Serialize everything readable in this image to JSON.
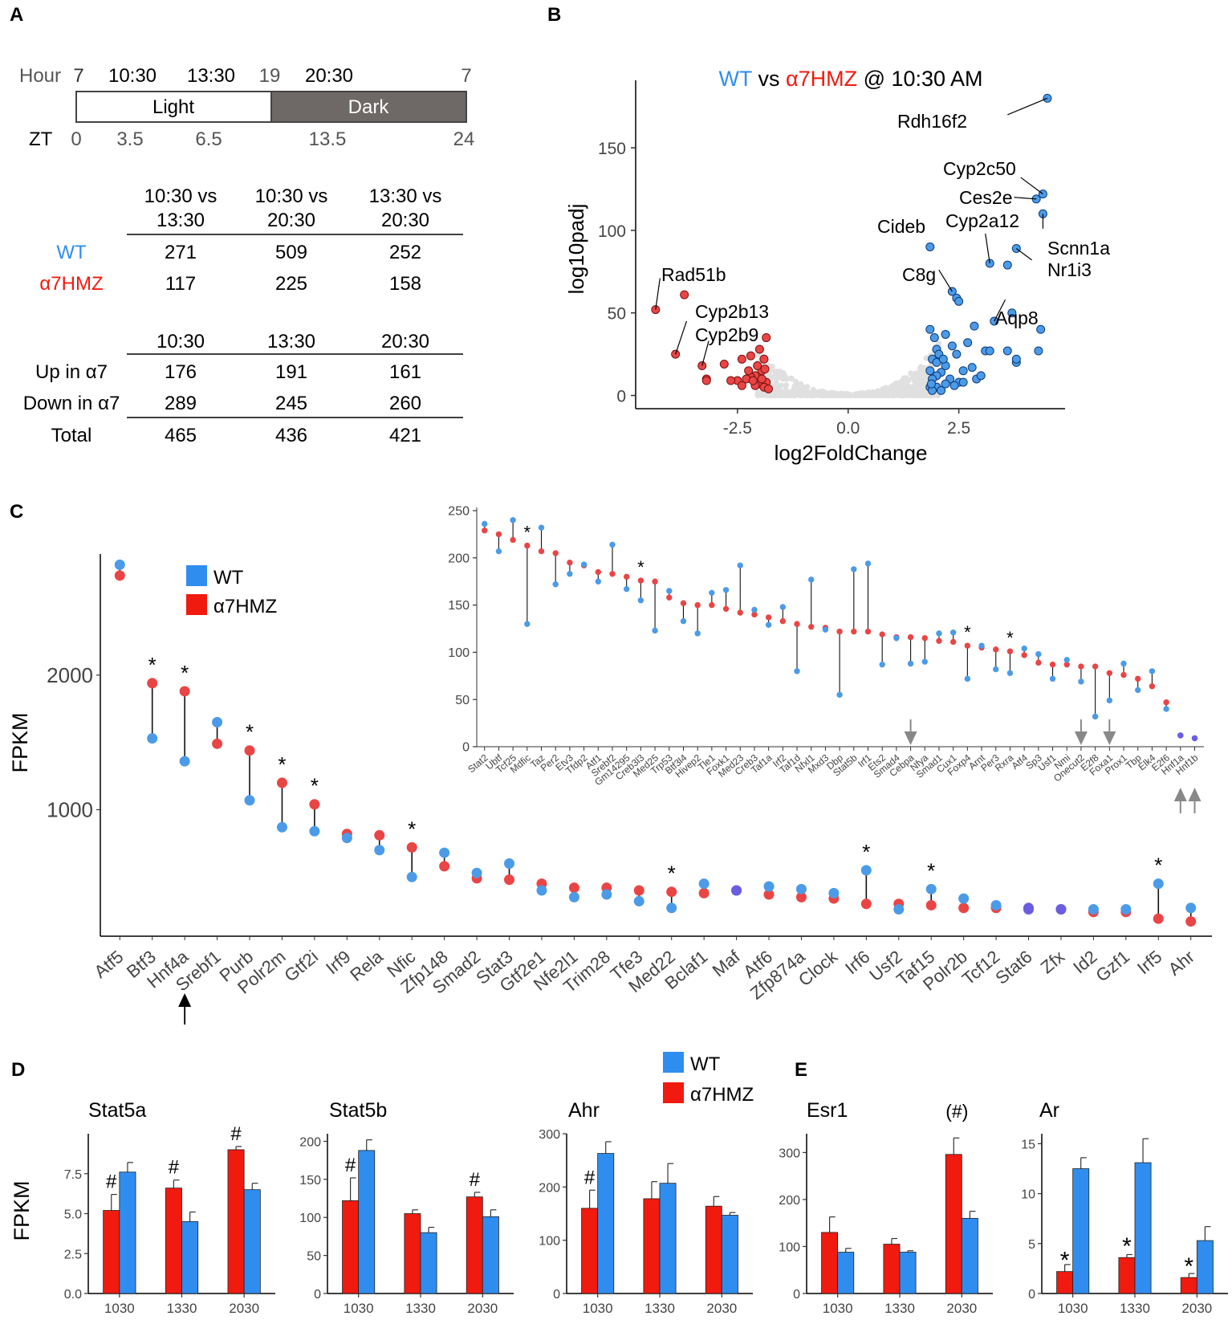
{
  "panel_labels": {
    "a": "A",
    "b": "B",
    "c": "C",
    "d": "D",
    "e": "E"
  },
  "colors": {
    "wt": "#2f8df0",
    "mut": "#f01a0f",
    "wt_dot": "#4b9be8",
    "mut_dot": "#ea4545",
    "dark": "#6e6866",
    "grey_pts": "#c8c8c8",
    "arrow_grey": "#888888"
  },
  "panel_a": {
    "hour_label": "Hour",
    "hours": [
      "7",
      "10:30",
      "13:30",
      "19",
      "20:30",
      "7"
    ],
    "light_label": "Light",
    "dark_label": "Dark",
    "zt_label": "ZT",
    "zt": [
      "0",
      "3.5",
      "6.5",
      "13.5",
      "24"
    ],
    "table1": {
      "headers": [
        [
          "10:30 vs",
          "13:30"
        ],
        [
          "10:30 vs",
          "20:30"
        ],
        [
          "13:30 vs",
          "20:30"
        ]
      ],
      "rows": [
        {
          "label": "WT",
          "values": [
            "271",
            "509",
            "252"
          ]
        },
        {
          "label": "α7HMZ",
          "values": [
            "117",
            "225",
            "158"
          ]
        }
      ]
    },
    "table2": {
      "headers": [
        "10:30",
        "13:30",
        "20:30"
      ],
      "rows": [
        {
          "label": "Up in α7",
          "values": [
            "176",
            "191",
            "161"
          ]
        },
        {
          "label": "Down in α7",
          "values": [
            "289",
            "245",
            "260"
          ]
        },
        {
          "label": "Total",
          "values": [
            "465",
            "436",
            "421"
          ]
        }
      ]
    }
  },
  "panel_b_text": {
    "title_wt": "WT",
    "title_vs": " vs ",
    "title_mut": "α7HMZ",
    "title_rest": " @ 10:30 AM",
    "xlabel": "log2FoldChange",
    "ylabel": "log10padj",
    "labels": [
      "Rdh16f2",
      "Cyp2c50",
      "Ces2e",
      "Cyp2a12",
      "Cideb",
      "Scnn1a",
      "Nr1i3",
      "C8g",
      "Aqp8",
      "Rad51b",
      "Cyp2b13",
      "Cyp2b9"
    ]
  },
  "panel_c_text": {
    "ylabel": "FPKM",
    "legend_wt": "WT",
    "legend_mut": "α7HMZ",
    "star": "*"
  },
  "panel_d_text": {
    "ylabel": "FPKM",
    "legend_wt": "WT",
    "legend_mut": "α7HMZ"
  },
  "chart_data": [
    {
      "id": "volcano",
      "type": "scatter",
      "title": "WT vs α7HMZ @ 10:30 AM",
      "xlabel": "log2FoldChange",
      "ylabel": "log10padj",
      "xlim": [
        -4.8,
        4.9
      ],
      "ylim": [
        -8,
        186
      ],
      "xticks": [
        -2.5,
        0.0,
        2.5
      ],
      "xtick_labels": [
        "-2.5",
        "0.0",
        "2.5"
      ],
      "yticks": [
        0,
        50,
        100,
        150
      ],
      "ytick_labels": [
        "0",
        "50",
        "100",
        "150"
      ],
      "up_points": [
        [
          4.5,
          180
        ],
        [
          4.4,
          122
        ],
        [
          4.25,
          119
        ],
        [
          4.4,
          110
        ],
        [
          3.8,
          89
        ],
        [
          3.2,
          80
        ],
        [
          3.6,
          79
        ],
        [
          1.85,
          90
        ],
        [
          2.35,
          63
        ],
        [
          2.45,
          59
        ],
        [
          2.5,
          57
        ],
        [
          3.3,
          45
        ],
        [
          2.85,
          42
        ],
        [
          3.7,
          50
        ],
        [
          1.85,
          40
        ],
        [
          2.2,
          37
        ],
        [
          4.3,
          27
        ],
        [
          3.6,
          27
        ],
        [
          3.1,
          27
        ],
        [
          3.2,
          27
        ],
        [
          4.35,
          40
        ],
        [
          3.8,
          20
        ],
        [
          3.8,
          22
        ],
        [
          2.0,
          28
        ],
        [
          2.05,
          25
        ],
        [
          2.35,
          30
        ],
        [
          1.9,
          22
        ],
        [
          2.2,
          18
        ],
        [
          1.85,
          15
        ],
        [
          2.1,
          14
        ],
        [
          2.0,
          12
        ],
        [
          2.6,
          15
        ],
        [
          2.8,
          17
        ],
        [
          1.9,
          10
        ],
        [
          2.3,
          10
        ],
        [
          2.5,
          8
        ],
        [
          1.85,
          5
        ],
        [
          2.0,
          5
        ],
        [
          2.2,
          7
        ],
        [
          2.4,
          6
        ],
        [
          2.6,
          8
        ],
        [
          2.9,
          10
        ],
        [
          3.0,
          12
        ],
        [
          1.9,
          3
        ],
        [
          2.1,
          3
        ],
        [
          1.88,
          7
        ],
        [
          2.0,
          20
        ],
        [
          2.15,
          22
        ],
        [
          2.45,
          25
        ],
        [
          2.7,
          32
        ],
        [
          1.95,
          35
        ]
      ],
      "up_labels": [
        {
          "name": "Rdh16f2",
          "point": [
            4.5,
            180
          ],
          "label_end": [
            3.6,
            170
          ]
        },
        {
          "name": "Cyp2c50",
          "point": [
            4.4,
            122
          ],
          "label_end": [
            3.9,
            132
          ]
        },
        {
          "name": "Ces2e",
          "point": [
            4.25,
            119
          ],
          "label_end": [
            3.75,
            120
          ]
        },
        {
          "name": "Cyp2a12",
          "point": [
            3.2,
            80
          ],
          "label_end": [
            3.1,
            98
          ]
        },
        {
          "name": "Cideb",
          "point": [
            1.85,
            90
          ],
          "label_end": [
            1.85,
            90
          ]
        },
        {
          "name": "Scnn1a",
          "point": [
            4.4,
            110
          ],
          "label_end": [
            4.4,
            101
          ]
        },
        {
          "name": "Nr1i3",
          "point": [
            3.8,
            89
          ],
          "label_end": [
            4.15,
            82
          ]
        },
        {
          "name": "C8g",
          "point": [
            2.35,
            63
          ],
          "label_end": [
            2.05,
            76
          ]
        },
        {
          "name": "Aqp8",
          "point": [
            3.3,
            45
          ],
          "label_end": [
            3.55,
            58
          ]
        }
      ],
      "down_points": [
        [
          -4.35,
          52
        ],
        [
          -3.7,
          61
        ],
        [
          -3.9,
          25
        ],
        [
          -3.3,
          18
        ],
        [
          -2.8,
          19
        ],
        [
          -2.4,
          22
        ],
        [
          -2.2,
          24
        ],
        [
          -2.0,
          28
        ],
        [
          -1.85,
          35
        ],
        [
          -1.9,
          22
        ],
        [
          -1.95,
          15
        ],
        [
          -2.1,
          12
        ],
        [
          -2.2,
          11
        ],
        [
          -2.3,
          10
        ],
        [
          -2.5,
          9
        ],
        [
          -2.65,
          9
        ],
        [
          -1.85,
          8
        ],
        [
          -2.0,
          7
        ],
        [
          -2.1,
          6
        ],
        [
          -1.9,
          5
        ],
        [
          -1.8,
          4
        ],
        [
          -2.4,
          6
        ],
        [
          -2.05,
          18
        ],
        [
          -2.25,
          15
        ],
        [
          -1.88,
          16
        ],
        [
          -2.15,
          9
        ],
        [
          -1.95,
          10
        ],
        [
          -3.2,
          10
        ],
        [
          -3.2,
          9
        ]
      ],
      "down_labels": [
        {
          "name": "Rad51b",
          "point": [
            -4.35,
            52
          ],
          "label_end": [
            -4.25,
            71
          ]
        },
        {
          "name": "Cyp2b13",
          "point": [
            -3.9,
            25
          ],
          "label_end": [
            -3.65,
            45
          ]
        },
        {
          "name": "Cyp2b9",
          "point": [
            -3.3,
            18
          ],
          "label_end": [
            -3.15,
            33
          ]
        }
      ]
    },
    {
      "id": "tf_main",
      "type": "scatter",
      "title": "",
      "xlabel": "",
      "ylabel": "FPKM",
      "ylim": [
        60,
        2900
      ],
      "yticks": [
        1000,
        2000
      ],
      "ytick_labels": [
        "1000",
        "2000"
      ],
      "categories": [
        "Atf5",
        "Btf3",
        "Hnf4a",
        "Srebf1",
        "Purb",
        "Polr2m",
        "Gtf2i",
        "Irf9",
        "Rela",
        "Nfic",
        "Zfp148",
        "Smad2",
        "Stat3",
        "Gtf2e1",
        "Nfe2l1",
        "Trim28",
        "Tfe3",
        "Med22",
        "Bclaf1",
        "Maf",
        "Atf6",
        "Zfp874a",
        "Clock",
        "Irf6",
        "Usf2",
        "Taf15",
        "Polr2b",
        "Tcf12",
        "Stat6",
        "Zfx",
        "Id2",
        "Gzf1",
        "Irf5",
        "Ahr"
      ],
      "series": [
        {
          "name": "WT",
          "values": [
            2820,
            1530,
            1360,
            1650,
            1070,
            870,
            840,
            790,
            700,
            500,
            680,
            530,
            600,
            400,
            350,
            370,
            320,
            270,
            450,
            400,
            430,
            410,
            380,
            550,
            260,
            410,
            340,
            290,
            260,
            260,
            260,
            260,
            450,
            270
          ]
        },
        {
          "name": "α7HMZ",
          "values": [
            2740,
            1940,
            1880,
            1490,
            1440,
            1200,
            1040,
            820,
            810,
            720,
            580,
            490,
            480,
            450,
            420,
            420,
            400,
            390,
            380,
            400,
            370,
            350,
            340,
            300,
            300,
            290,
            270,
            270,
            270,
            260,
            240,
            240,
            190,
            170
          ]
        }
      ],
      "significant": [
        "Btf3",
        "Hnf4a",
        "Purb",
        "Polr2m",
        "Gtf2i",
        "Nfic",
        "Med22",
        "Irf6",
        "Taf15",
        "Irf5"
      ],
      "arrow_below": [
        "Hnf4a"
      ]
    },
    {
      "id": "tf_inset",
      "type": "scatter",
      "title": "",
      "ylim": [
        0,
        250
      ],
      "yticks": [
        0,
        50,
        100,
        150,
        200,
        250
      ],
      "ytick_labels": [
        "0",
        "50",
        "100",
        "150",
        "200",
        "250"
      ],
      "categories": [
        "Stat2",
        "Ubtf",
        "Tcf25",
        "Mdfic",
        "Taz",
        "Per2",
        "Etv3",
        "Tfdp2",
        "Atf1",
        "Srebf2",
        "Gm14295",
        "Creb3l3",
        "Med25",
        "Trp53",
        "Btf3l4",
        "Hivep2",
        "Tle1",
        "Foxk1",
        "Med23",
        "Creb3",
        "Taf1a",
        "Irf2",
        "Taf1d",
        "Nfxl1",
        "Mxd3",
        "Dbp",
        "Stat5b",
        "Irf1",
        "Ets2",
        "Smad4",
        "Cebpa",
        "Nfya",
        "Smad1",
        "Cux1",
        "Foxp4",
        "Arnt",
        "Per3",
        "Rxra",
        "Atf4",
        "Sp3",
        "Usf1",
        "Nmi",
        "Onecut2",
        "E2f8",
        "Foxa1",
        "Prox1",
        "Tbp",
        "Elk4",
        "E2f6",
        "Hnf1a",
        "Hnf1b"
      ],
      "series": [
        {
          "name": "WT",
          "values": [
            236,
            207,
            240,
            130,
            232,
            172,
            183,
            193,
            175,
            214,
            167,
            155,
            123,
            165,
            133,
            120,
            163,
            166,
            192,
            145,
            129,
            148,
            80,
            177,
            124,
            55,
            188,
            194,
            87,
            115,
            88,
            90,
            120,
            121,
            72,
            107,
            82,
            78,
            104,
            98,
            72,
            92,
            69,
            32,
            49,
            88,
            60,
            80,
            40,
            12,
            9
          ]
        },
        {
          "name": "α7HMZ",
          "values": [
            229,
            225,
            219,
            213,
            207,
            205,
            195,
            192,
            185,
            183,
            180,
            176,
            175,
            158,
            152,
            150,
            150,
            146,
            142,
            140,
            137,
            133,
            130,
            127,
            126,
            122,
            122,
            122,
            119,
            116,
            116,
            115,
            112,
            111,
            107,
            105,
            103,
            101,
            97,
            89,
            87,
            87,
            85,
            85,
            78,
            76,
            72,
            64,
            47,
            12,
            9
          ]
        }
      ],
      "significant": [
        "Mdfic",
        "Creb3l3",
        "Foxp4",
        "Rxra"
      ],
      "arrows_down": [
        "Cebpa",
        "Onecut2",
        "Foxa1"
      ],
      "arrows_up": [
        "Hnf1a",
        "Hnf1b"
      ]
    },
    {
      "id": "stat5a",
      "type": "bar",
      "title": "Stat5a",
      "ylabel": "FPKM",
      "categories": [
        "1030",
        "1330",
        "2030"
      ],
      "ylim": [
        0,
        10
      ],
      "yticks": [
        0,
        2.5,
        5,
        7.5
      ],
      "ytick_labels": [
        "0.0",
        "2.5",
        "5.0",
        "7.5"
      ],
      "series": [
        {
          "name": "α7HMZ",
          "values": [
            5.2,
            6.6,
            9.0
          ],
          "errors": [
            1.0,
            0.5,
            0.2
          ]
        },
        {
          "name": "WT",
          "values": [
            7.6,
            4.5,
            6.5
          ],
          "errors": [
            0.6,
            0.6,
            0.4
          ]
        }
      ],
      "annotations": [
        "#",
        "#",
        "#"
      ]
    },
    {
      "id": "stat5b",
      "type": "bar",
      "title": "Stat5b",
      "categories": [
        "1030",
        "1330",
        "2030"
      ],
      "ylim": [
        0,
        210
      ],
      "yticks": [
        0,
        50,
        100,
        150,
        200
      ],
      "ytick_labels": [
        "0",
        "50",
        "100",
        "150",
        "200"
      ],
      "series": [
        {
          "name": "α7HMZ",
          "values": [
            122,
            105,
            127
          ],
          "errors": [
            30,
            5,
            6
          ]
        },
        {
          "name": "WT",
          "values": [
            188,
            80,
            101
          ],
          "errors": [
            14,
            7,
            9
          ]
        }
      ],
      "annotations": [
        "#",
        "",
        "#"
      ]
    },
    {
      "id": "ahr",
      "type": "bar",
      "title": "Ahr",
      "categories": [
        "1030",
        "1330",
        "2030"
      ],
      "ylim": [
        0,
        300
      ],
      "yticks": [
        0,
        100,
        200,
        300
      ],
      "ytick_labels": [
        "0",
        "100",
        "200",
        "300"
      ],
      "series": [
        {
          "name": "α7HMZ",
          "values": [
            160,
            178,
            164
          ],
          "errors": [
            34,
            32,
            18
          ]
        },
        {
          "name": "WT",
          "values": [
            263,
            207,
            147
          ],
          "errors": [
            22,
            37,
            5
          ]
        }
      ],
      "annotations": [
        "#",
        "",
        ""
      ]
    },
    {
      "id": "esr1",
      "type": "bar",
      "title": "Esr1",
      "categories": [
        "1030",
        "1330",
        "2030"
      ],
      "ylim": [
        0,
        340
      ],
      "yticks": [
        0,
        100,
        200,
        300
      ],
      "ytick_labels": [
        "0",
        "100",
        "200",
        "300"
      ],
      "series": [
        {
          "name": "α7HMZ",
          "values": [
            130,
            105,
            296
          ],
          "errors": [
            33,
            12,
            35
          ]
        },
        {
          "name": "WT",
          "values": [
            88,
            88,
            160
          ],
          "errors": [
            8,
            3,
            15
          ]
        }
      ],
      "annotations": [
        "",
        "",
        "(#)"
      ]
    },
    {
      "id": "ar",
      "type": "bar",
      "title": "Ar",
      "categories": [
        "1030",
        "1330",
        "2030"
      ],
      "ylim": [
        0,
        16
      ],
      "yticks": [
        0,
        5,
        10,
        15
      ],
      "ytick_labels": [
        "0",
        "5",
        "10",
        "15"
      ],
      "series": [
        {
          "name": "α7HMZ",
          "values": [
            2.2,
            3.6,
            1.6
          ],
          "errors": [
            0.7,
            0.3,
            0.4
          ]
        },
        {
          "name": "WT",
          "values": [
            12.5,
            13.1,
            5.3
          ],
          "errors": [
            1.1,
            2.4,
            1.4
          ]
        }
      ],
      "annotations": [
        "*",
        "*",
        "*"
      ]
    }
  ]
}
